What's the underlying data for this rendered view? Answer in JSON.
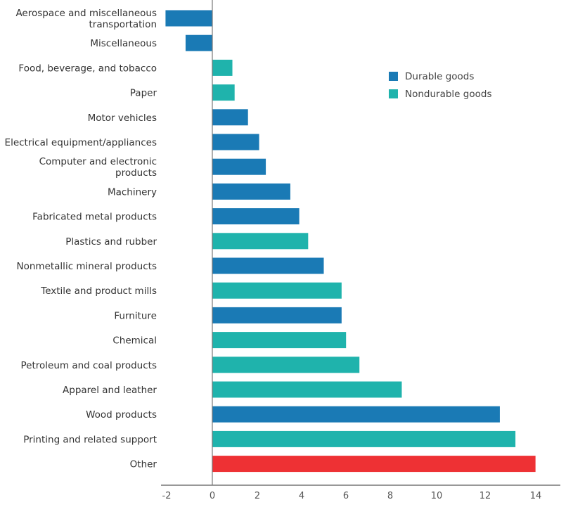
{
  "chart_data": {
    "type": "bar",
    "orientation": "horizontal",
    "title": "",
    "xlabel": "",
    "ylabel": "",
    "xlim": [
      -2.2,
      15.4
    ],
    "xticks": [
      -2,
      0,
      2,
      4,
      6,
      8,
      10,
      12,
      14
    ],
    "grid": false,
    "legend_position": "top-right",
    "legend": [
      {
        "name": "Durable goods",
        "color": "#1a7ab5"
      },
      {
        "name": "Nondurable goods",
        "color": "#1fb3ac"
      }
    ],
    "colors": {
      "Durable goods": "#1a7ab5",
      "Nondurable goods": "#1fb3ac",
      "Other": "#ee3134"
    },
    "bars": [
      {
        "label": [
          "Aerospace and miscellaneous",
          "transportation"
        ],
        "value": -2.1,
        "group": "Durable goods"
      },
      {
        "label": [
          "Miscellaneous"
        ],
        "value": -1.2,
        "group": "Durable goods"
      },
      {
        "label": [
          "Food, beverage, and tobacco"
        ],
        "value": 0.9,
        "group": "Nondurable goods"
      },
      {
        "label": [
          "Paper"
        ],
        "value": 1.0,
        "group": "Nondurable goods"
      },
      {
        "label": [
          "Motor vehicles"
        ],
        "value": 1.6,
        "group": "Durable goods"
      },
      {
        "label": [
          "Electrical equipment/appliances"
        ],
        "value": 2.1,
        "group": "Durable goods"
      },
      {
        "label": [
          "Computer and electronic",
          "products"
        ],
        "value": 2.4,
        "group": "Durable goods"
      },
      {
        "label": [
          "Machinery"
        ],
        "value": 3.5,
        "group": "Durable goods"
      },
      {
        "label": [
          "Fabricated metal products"
        ],
        "value": 3.9,
        "group": "Durable goods"
      },
      {
        "label": [
          "Plastics and rubber"
        ],
        "value": 4.3,
        "group": "Nondurable goods"
      },
      {
        "label": [
          "Nonmetallic mineral products"
        ],
        "value": 5.0,
        "group": "Durable goods"
      },
      {
        "label": [
          "Textile and product mills"
        ],
        "value": 5.8,
        "group": "Nondurable goods"
      },
      {
        "label": [
          "Furniture"
        ],
        "value": 5.8,
        "group": "Durable goods"
      },
      {
        "label": [
          "Chemical"
        ],
        "value": 6.0,
        "group": "Nondurable goods"
      },
      {
        "label": [
          "Petroleum and coal products"
        ],
        "value": 6.6,
        "group": "Nondurable goods"
      },
      {
        "label": [
          "Apparel and leather"
        ],
        "value": 8.5,
        "group": "Nondurable goods"
      },
      {
        "label": [
          "Wood products"
        ],
        "value": 12.9,
        "group": "Durable goods"
      },
      {
        "label": [
          "Printing and related support"
        ],
        "value": 13.6,
        "group": "Nondurable goods"
      },
      {
        "label": [
          "Other"
        ],
        "value": 14.5,
        "group": "Other"
      }
    ]
  }
}
